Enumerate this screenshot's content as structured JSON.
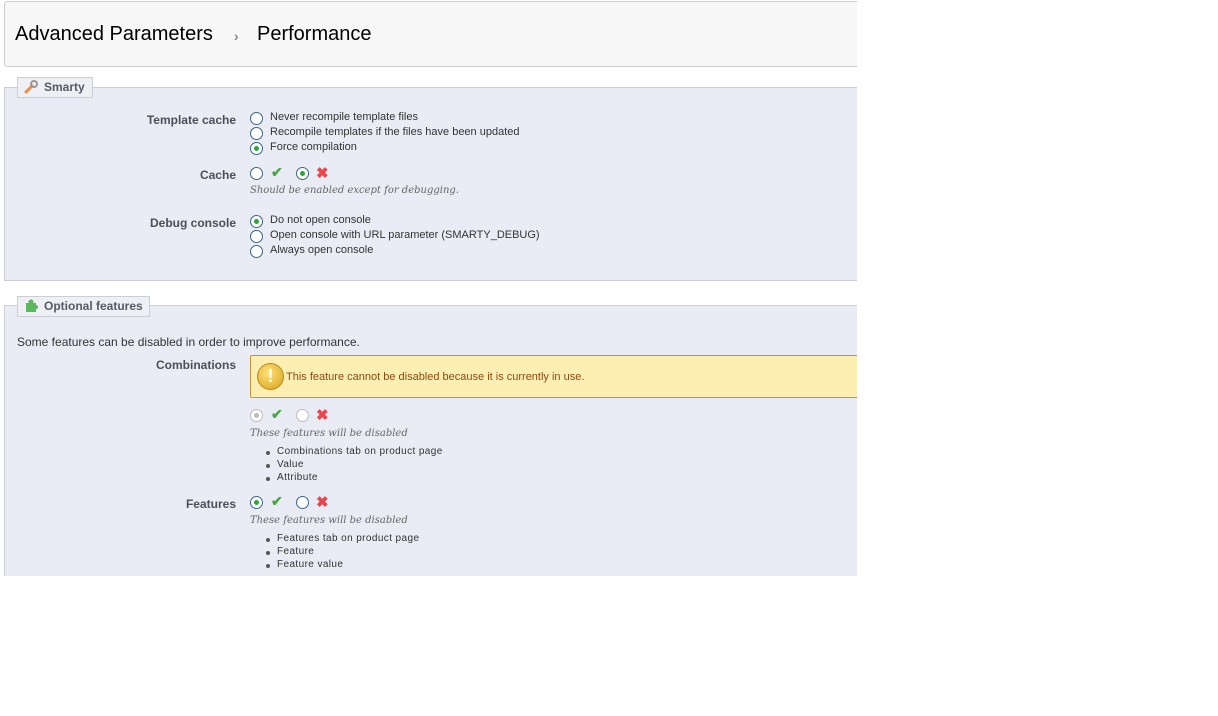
{
  "breadcrumb": {
    "parent": "Advanced Parameters",
    "current": "Performance"
  },
  "smarty": {
    "legend": "Smarty",
    "template_cache": {
      "label": "Template cache",
      "options": [
        "Never recompile template files",
        "Recompile templates if the files have been updated",
        "Force compilation"
      ],
      "selected": 2
    },
    "cache": {
      "label": "Cache",
      "enabled": false,
      "hint": "Should be enabled except for debugging."
    },
    "debug_console": {
      "label": "Debug console",
      "options": [
        "Do not open console",
        "Open console with URL parameter (SMARTY_DEBUG)",
        "Always open console"
      ],
      "selected": 0
    }
  },
  "optional": {
    "legend": "Optional features",
    "intro": "Some features can be disabled in order to improve performance.",
    "combinations": {
      "label": "Combinations",
      "warning": "This feature cannot be disabled because it is currently in use.",
      "enabled": true,
      "disabled_input": true,
      "hint": "These features will be disabled",
      "items": [
        "Combinations tab on product page",
        "Value",
        "Attribute"
      ]
    },
    "features": {
      "label": "Features",
      "enabled": true,
      "hint": "These features will be disabled",
      "items": [
        "Features tab on product page",
        "Feature",
        "Feature value"
      ]
    }
  },
  "colors": {
    "panel_bg": "#e9ecf4",
    "warning_bg": "#fdefb2",
    "check": "#4aa844",
    "cross": "#e8474c"
  }
}
